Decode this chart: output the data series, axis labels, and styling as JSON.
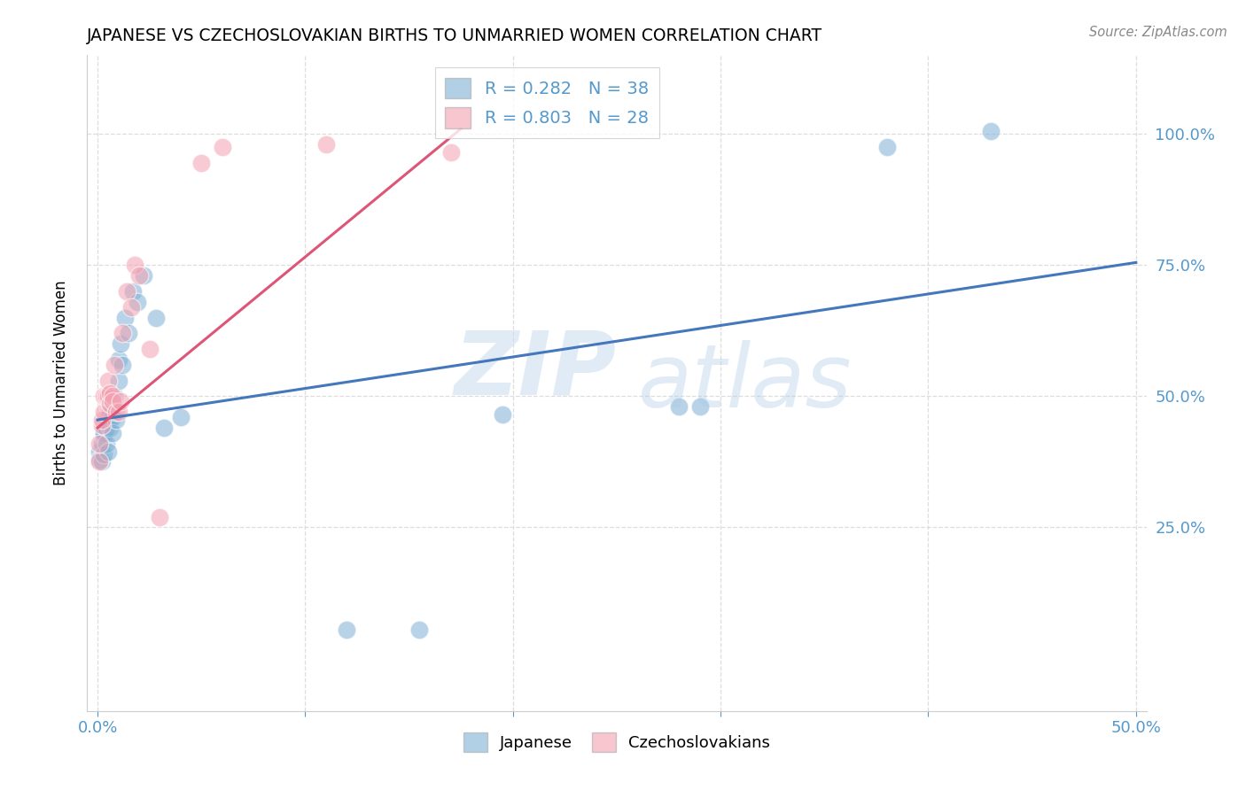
{
  "title": "JAPANESE VS CZECHOSLOVAKIAN BIRTHS TO UNMARRIED WOMEN CORRELATION CHART",
  "source": "Source: ZipAtlas.com",
  "ylabel": "Births to Unmarried Women",
  "blue_color": "#7EB0D5",
  "pink_color": "#F4A0B0",
  "blue_line_color": "#4477BB",
  "pink_line_color": "#DD5577",
  "axis_color": "#5599CC",
  "grid_color": "#DDDDDD",
  "japanese_x": [
    0.001,
    0.001,
    0.002,
    0.002,
    0.003,
    0.003,
    0.003,
    0.004,
    0.004,
    0.005,
    0.005,
    0.005,
    0.006,
    0.006,
    0.007,
    0.007,
    0.007,
    0.008,
    0.009,
    0.01,
    0.01,
    0.011,
    0.012,
    0.013,
    0.015,
    0.017,
    0.019,
    0.022,
    0.028,
    0.032,
    0.04,
    0.12,
    0.155,
    0.195,
    0.28,
    0.29,
    0.38,
    0.43
  ],
  "japanese_y": [
    0.395,
    0.38,
    0.41,
    0.375,
    0.425,
    0.39,
    0.43,
    0.44,
    0.41,
    0.45,
    0.395,
    0.46,
    0.44,
    0.47,
    0.48,
    0.46,
    0.43,
    0.5,
    0.455,
    0.57,
    0.53,
    0.6,
    0.56,
    0.65,
    0.62,
    0.7,
    0.68,
    0.73,
    0.65,
    0.44,
    0.46,
    0.055,
    0.055,
    0.465,
    0.48,
    0.48,
    0.975,
    1.005
  ],
  "czech_x": [
    0.001,
    0.001,
    0.002,
    0.002,
    0.003,
    0.003,
    0.004,
    0.005,
    0.005,
    0.006,
    0.006,
    0.007,
    0.007,
    0.008,
    0.009,
    0.01,
    0.011,
    0.012,
    0.014,
    0.016,
    0.018,
    0.02,
    0.025,
    0.03,
    0.05,
    0.06,
    0.11,
    0.17
  ],
  "czech_y": [
    0.375,
    0.41,
    0.445,
    0.455,
    0.47,
    0.5,
    0.5,
    0.5,
    0.53,
    0.485,
    0.505,
    0.5,
    0.49,
    0.56,
    0.47,
    0.47,
    0.49,
    0.62,
    0.7,
    0.67,
    0.75,
    0.73,
    0.59,
    0.27,
    0.945,
    0.975,
    0.98,
    0.965
  ],
  "blue_trendline": [
    0.0,
    0.5,
    0.455,
    0.755
  ],
  "pink_trendline": [
    0.0,
    0.175,
    0.44,
    1.01
  ],
  "xlim": [
    -0.005,
    0.505
  ],
  "ylim": [
    -0.1,
    1.15
  ],
  "xticks": [
    0.0,
    0.1,
    0.2,
    0.3,
    0.4,
    0.5
  ],
  "xtick_labels": [
    "0.0%",
    "",
    "",
    "",
    "",
    "50.0%"
  ],
  "yticks": [
    0.25,
    0.5,
    0.75,
    1.0
  ],
  "ytick_labels": [
    "25.0%",
    "50.0%",
    "75.0%",
    "100.0%"
  ]
}
